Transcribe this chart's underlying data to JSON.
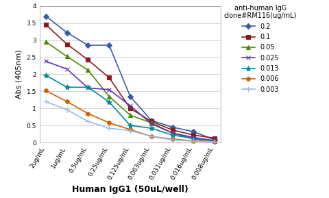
{
  "x_labels": [
    "2ug/mL",
    "1ug/mL",
    "0.5ug/mL",
    "0.25ug/mL",
    "0.125ug/mL",
    "0.063ug/mL",
    "0.031ug/mL",
    "0.016ug/mL",
    "0.008ug/mL"
  ],
  "series": [
    {
      "label": "0.2",
      "color": "#3B5BA5",
      "marker": "D",
      "markersize": 4,
      "values": [
        3.7,
        3.22,
        2.85,
        2.85,
        1.35,
        0.65,
        0.45,
        0.32,
        0.08
      ]
    },
    {
      "label": "0.1",
      "color": "#8B1A1A",
      "marker": "s",
      "markersize": 4,
      "values": [
        3.45,
        2.88,
        2.42,
        1.9,
        1.0,
        0.62,
        0.37,
        0.22,
        0.13
      ]
    },
    {
      "label": "0.05",
      "color": "#4A8A00",
      "marker": "^",
      "markersize": 4,
      "values": [
        2.95,
        2.52,
        2.12,
        1.35,
        0.8,
        0.58,
        0.28,
        0.1,
        0.05
      ]
    },
    {
      "label": "0.025",
      "color": "#6030B0",
      "marker": "x",
      "markersize": 5,
      "values": [
        2.38,
        2.15,
        1.6,
        1.55,
        1.08,
        0.55,
        0.28,
        0.15,
        0.06
      ]
    },
    {
      "label": "0.013",
      "color": "#008B9B",
      "marker": "*",
      "markersize": 6,
      "values": [
        1.97,
        1.62,
        1.62,
        1.19,
        0.5,
        0.42,
        0.22,
        0.12,
        0.05
      ]
    },
    {
      "label": "0.006",
      "color": "#D06000",
      "marker": "o",
      "markersize": 4,
      "values": [
        1.52,
        1.2,
        0.85,
        0.58,
        0.38,
        0.18,
        0.1,
        0.05,
        0.03
      ]
    },
    {
      "label": "0.003",
      "color": "#99BBDD",
      "marker": "+",
      "markersize": 6,
      "values": [
        1.2,
        0.96,
        0.62,
        0.42,
        0.35,
        0.18,
        0.08,
        0.04,
        0.02
      ]
    }
  ],
  "xlabel": "Human IgG1 (50uL/well)",
  "ylabel": "Abs (405nm)",
  "ylim": [
    0,
    4
  ],
  "yticks": [
    0,
    0.5,
    1,
    1.5,
    2,
    2.5,
    3,
    3.5,
    4
  ],
  "legend_title": "anti-human IgG\nclone#RM116(ug/mL)",
  "background_color": "#FFFFFF",
  "grid_color": "#CCCCCC",
  "axis_fontsize": 8,
  "tick_fontsize": 6.5,
  "legend_fontsize": 7,
  "xlabel_fontsize": 9,
  "linewidth": 1.2
}
